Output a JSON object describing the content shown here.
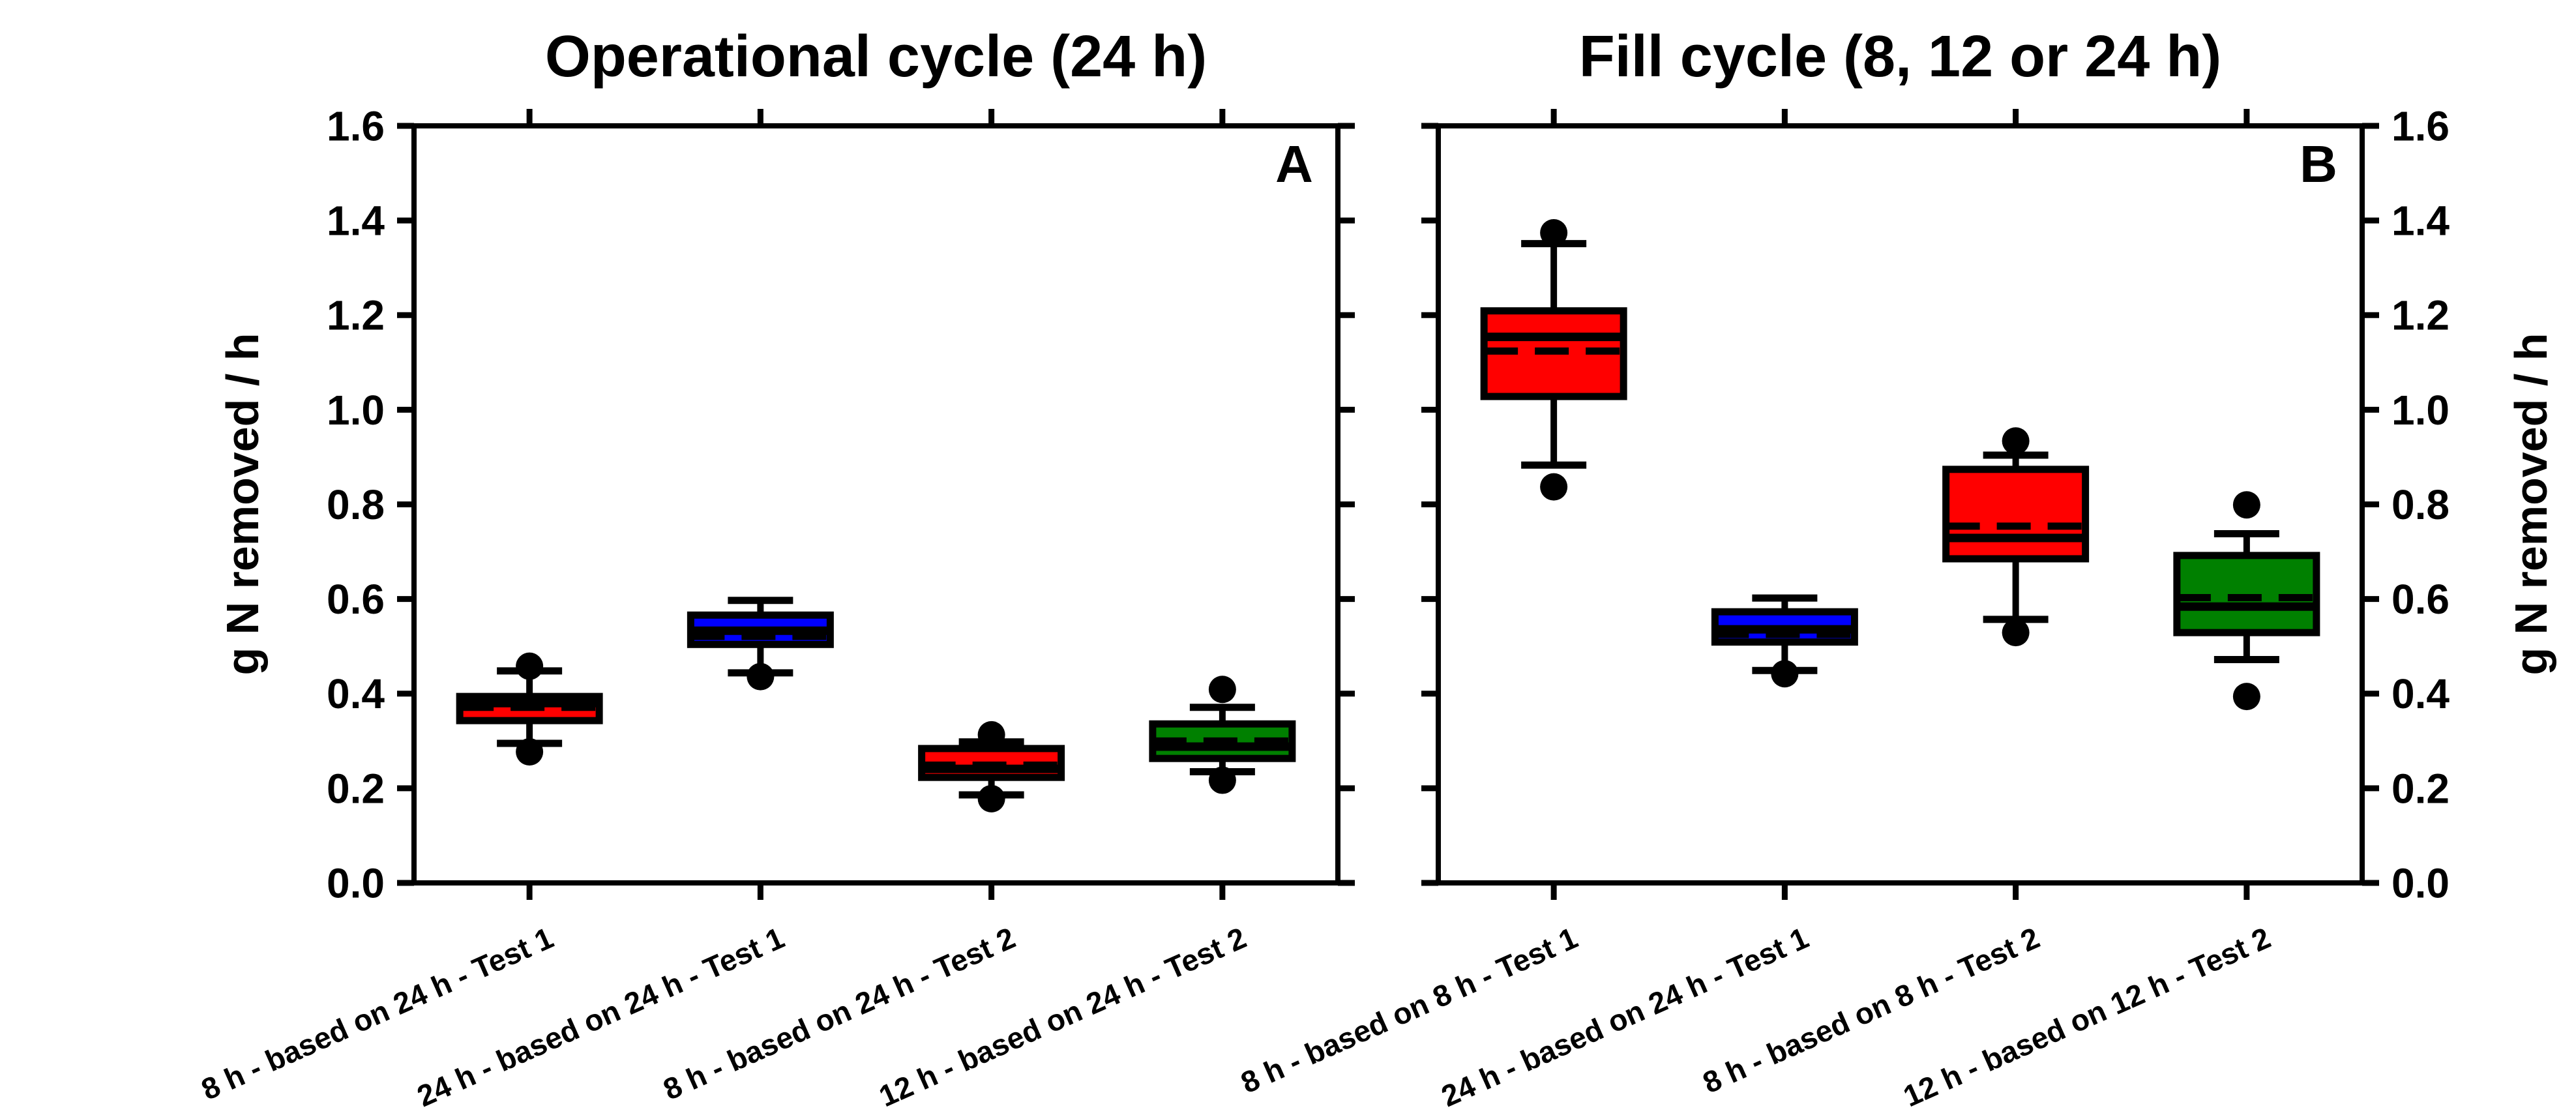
{
  "figure": {
    "background": "#ffffff",
    "line_color": "#000000"
  },
  "colors": {
    "red": "#FF0000",
    "blue": "#0000FF",
    "green": "#008000",
    "black": "#000000"
  },
  "chart_data": [
    {
      "type": "box",
      "title": "Operational cycle (24 h)",
      "panel_label": "A",
      "ylabel": "g N removed / h",
      "ylim": [
        0.0,
        1.6
      ],
      "y_tick_step": 0.2,
      "y_tick_labels": [
        "0.0",
        "0.2",
        "0.4",
        "0.6",
        "0.8",
        "1.0",
        "1.2",
        "1.4",
        "1.6"
      ],
      "grid": false,
      "legend": "none",
      "categories": [
        "8 h - based on 24 h - Test 1",
        "24 h - based on 24 h - Test 1",
        "8 h - based on 24 h - Test 2",
        "12 h - based on 24 h - Test 2"
      ],
      "boxes": [
        {
          "category": "8 h - based on 24 h - Test 1",
          "color": "#FF0000",
          "q1": 0.343,
          "median": 0.38,
          "mean": 0.371,
          "q3": 0.394,
          "whisker_low": 0.295,
          "whisker_high": 0.448,
          "outliers": [
            0.458,
            0.277
          ]
        },
        {
          "category": "24 h - based on 24 h - Test 1",
          "color": "#0000FF",
          "q1": 0.504,
          "median": 0.533,
          "mean": 0.521,
          "q3": 0.566,
          "whisker_low": 0.444,
          "whisker_high": 0.597,
          "outliers": [
            0.436
          ]
        },
        {
          "category": "8 h - based on 24 h - Test 2",
          "color": "#FF0000",
          "q1": 0.223,
          "median": 0.241,
          "mean": 0.249,
          "q3": 0.284,
          "whisker_low": 0.186,
          "whisker_high": 0.298,
          "outliers": [
            0.313,
            0.178
          ]
        },
        {
          "category": "12 h - based on 24 h - Test 2",
          "color": "#008000",
          "q1": 0.263,
          "median": 0.288,
          "mean": 0.3,
          "q3": 0.336,
          "whisker_low": 0.235,
          "whisker_high": 0.371,
          "outliers": [
            0.409,
            0.217
          ]
        }
      ]
    },
    {
      "type": "box",
      "title": "Fill cycle (8, 12 or 24 h)",
      "panel_label": "B",
      "ylabel": "g N removed / h",
      "ylim": [
        0.0,
        1.6
      ],
      "y_tick_step": 0.2,
      "y_tick_labels": [
        "0.0",
        "0.2",
        "0.4",
        "0.6",
        "0.8",
        "1.0",
        "1.2",
        "1.4",
        "1.6"
      ],
      "grid": false,
      "legend": "none",
      "categories": [
        "8 h - based on 8 h - Test 1",
        "24 h - based on 24 h - Test 1",
        "8 h - based on 8 h - Test 2",
        "12 h - based on 12 h - Test 2"
      ],
      "boxes": [
        {
          "category": "8 h - based on 8 h - Test 1",
          "color": "#FF0000",
          "q1": 1.028,
          "median": 1.154,
          "mean": 1.124,
          "q3": 1.209,
          "whisker_low": 0.883,
          "whisker_high": 1.351,
          "outliers": [
            1.374,
            0.837
          ]
        },
        {
          "category": "24 h - based on 24 h - Test 1",
          "color": "#0000FF",
          "q1": 0.509,
          "median": 0.536,
          "mean": 0.525,
          "q3": 0.573,
          "whisker_low": 0.449,
          "whisker_high": 0.602,
          "outliers": [
            0.442
          ]
        },
        {
          "category": "8 h - based on 8 h - Test 2",
          "color": "#FF0000",
          "q1": 0.685,
          "median": 0.729,
          "mean": 0.754,
          "q3": 0.874,
          "whisker_low": 0.557,
          "whisker_high": 0.904,
          "outliers": [
            0.934,
            0.529
          ]
        },
        {
          "category": "12 h - based on 12 h - Test 2",
          "color": "#008000",
          "q1": 0.529,
          "median": 0.584,
          "mean": 0.603,
          "q3": 0.692,
          "whisker_low": 0.472,
          "whisker_high": 0.738,
          "outliers": [
            0.799,
            0.394
          ]
        }
      ]
    }
  ]
}
